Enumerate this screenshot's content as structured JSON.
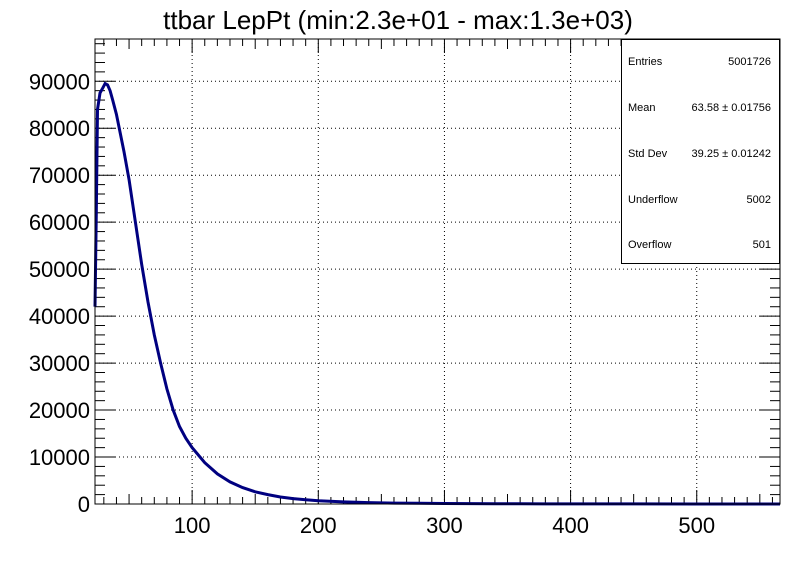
{
  "chart_data": {
    "type": "line",
    "title": "ttbar LepPt (min:2.3e+01 - max:1.3e+03)",
    "xlabel": "",
    "ylabel": "",
    "xlim": [
      23,
      566
    ],
    "ylim": [
      0,
      99000
    ],
    "grid": true,
    "x_ticks": [
      100,
      200,
      300,
      400,
      500
    ],
    "y_ticks": [
      0,
      10000,
      20000,
      30000,
      40000,
      50000,
      60000,
      70000,
      80000,
      90000
    ],
    "line_color": "#000080",
    "series": [
      {
        "x": [
          23,
          24,
          25,
          27,
          29,
          31,
          33,
          35,
          37,
          40,
          43,
          46,
          50,
          55,
          60,
          65,
          70,
          75,
          80,
          85,
          90,
          95,
          100,
          110,
          120,
          130,
          140,
          150,
          160,
          170,
          180,
          190,
          200,
          220,
          240,
          260,
          280,
          300,
          320,
          340,
          360,
          380,
          400,
          450,
          500,
          566
        ],
        "y": [
          42000,
          62000,
          84000,
          87500,
          88500,
          89500,
          89200,
          88000,
          86000,
          83000,
          79000,
          75000,
          69000,
          60000,
          51000,
          43000,
          36000,
          30000,
          24500,
          20000,
          16500,
          14000,
          12000,
          8800,
          6400,
          4700,
          3500,
          2600,
          2000,
          1500,
          1150,
          900,
          700,
          450,
          300,
          200,
          140,
          100,
          75,
          55,
          40,
          30,
          22,
          12,
          7,
          3
        ]
      }
    ],
    "stats": {
      "rows": [
        {
          "key": "Entries",
          "value": "5001726"
        },
        {
          "key": "Mean",
          "value": "63.58 ± 0.01756"
        },
        {
          "key": "Std Dev",
          "value": "39.25 ± 0.01242"
        },
        {
          "key": "Underflow",
          "value": "5002"
        },
        {
          "key": "Overflow",
          "value": "501"
        }
      ]
    }
  }
}
